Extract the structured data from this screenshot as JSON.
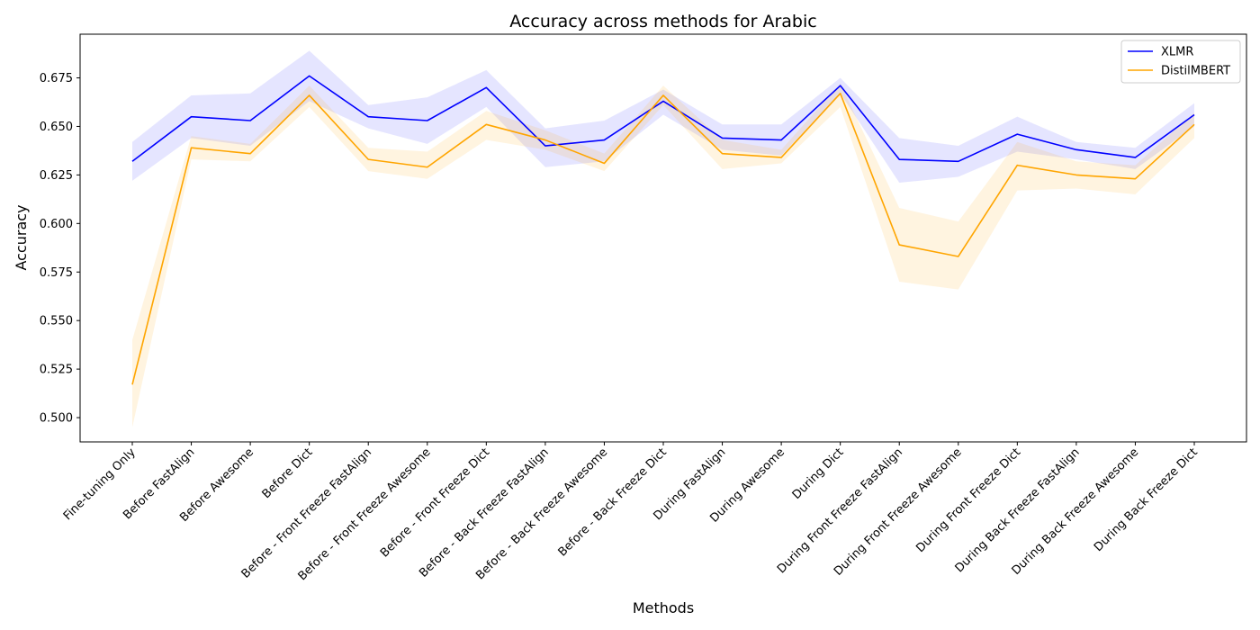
{
  "chart_data": {
    "type": "line",
    "title": "Accuracy across methods for Arabic",
    "xlabel": "Methods",
    "ylabel": "Accuracy",
    "ylim": [
      0.4875,
      0.6975
    ],
    "yticks": [
      "0.500",
      "0.525",
      "0.550",
      "0.575",
      "0.600",
      "0.625",
      "0.650",
      "0.675"
    ],
    "grid": false,
    "legend_position": "top-right",
    "categories": [
      "Fine-tuning Only",
      "Before FastAlign",
      "Before Awesome",
      "Before Dict",
      "Before - Front Freeze FastAlign",
      "Before - Front Freeze Awesome",
      "Before - Front Freeze Dict",
      "Before - Back Freeze FastAlign",
      "Before - Back Freeze Awesome",
      "Before - Back Freeze Dict",
      "During FastAlign",
      "During Awesome",
      "During Dict",
      "During Front Freeze FastAlign",
      "During Front Freeze Awesome",
      "During Front Freeze Dict",
      "During Back Freeze FastAlign",
      "During Back Freeze Awesome",
      "During Back Freeze Dict"
    ],
    "series": [
      {
        "name": "XLMR",
        "color": "#0000ff",
        "band_color": "#0000ff",
        "values": [
          0.632,
          0.655,
          0.653,
          0.676,
          0.655,
          0.653,
          0.67,
          0.64,
          0.643,
          0.663,
          0.644,
          0.643,
          0.671,
          0.633,
          0.632,
          0.646,
          0.638,
          0.634,
          0.656
        ],
        "lower": [
          0.622,
          0.644,
          0.64,
          0.663,
          0.649,
          0.641,
          0.66,
          0.629,
          0.632,
          0.656,
          0.638,
          0.635,
          0.667,
          0.621,
          0.624,
          0.637,
          0.633,
          0.628,
          0.65
        ],
        "upper": [
          0.642,
          0.666,
          0.667,
          0.689,
          0.661,
          0.665,
          0.679,
          0.649,
          0.653,
          0.669,
          0.651,
          0.651,
          0.675,
          0.644,
          0.64,
          0.655,
          0.642,
          0.639,
          0.662
        ]
      },
      {
        "name": "DistilMBERT",
        "color": "#ffa500",
        "band_color": "#ffa500",
        "values": [
          0.517,
          0.639,
          0.636,
          0.666,
          0.633,
          0.629,
          0.651,
          0.643,
          0.631,
          0.666,
          0.636,
          0.634,
          0.667,
          0.589,
          0.583,
          0.63,
          0.625,
          0.623,
          0.651
        ],
        "lower": [
          0.495,
          0.633,
          0.632,
          0.66,
          0.627,
          0.623,
          0.643,
          0.638,
          0.627,
          0.661,
          0.628,
          0.631,
          0.66,
          0.57,
          0.566,
          0.617,
          0.618,
          0.615,
          0.644
        ],
        "upper": [
          0.54,
          0.645,
          0.641,
          0.671,
          0.639,
          0.637,
          0.658,
          0.648,
          0.636,
          0.671,
          0.643,
          0.638,
          0.672,
          0.608,
          0.601,
          0.642,
          0.632,
          0.63,
          0.657
        ]
      }
    ]
  }
}
